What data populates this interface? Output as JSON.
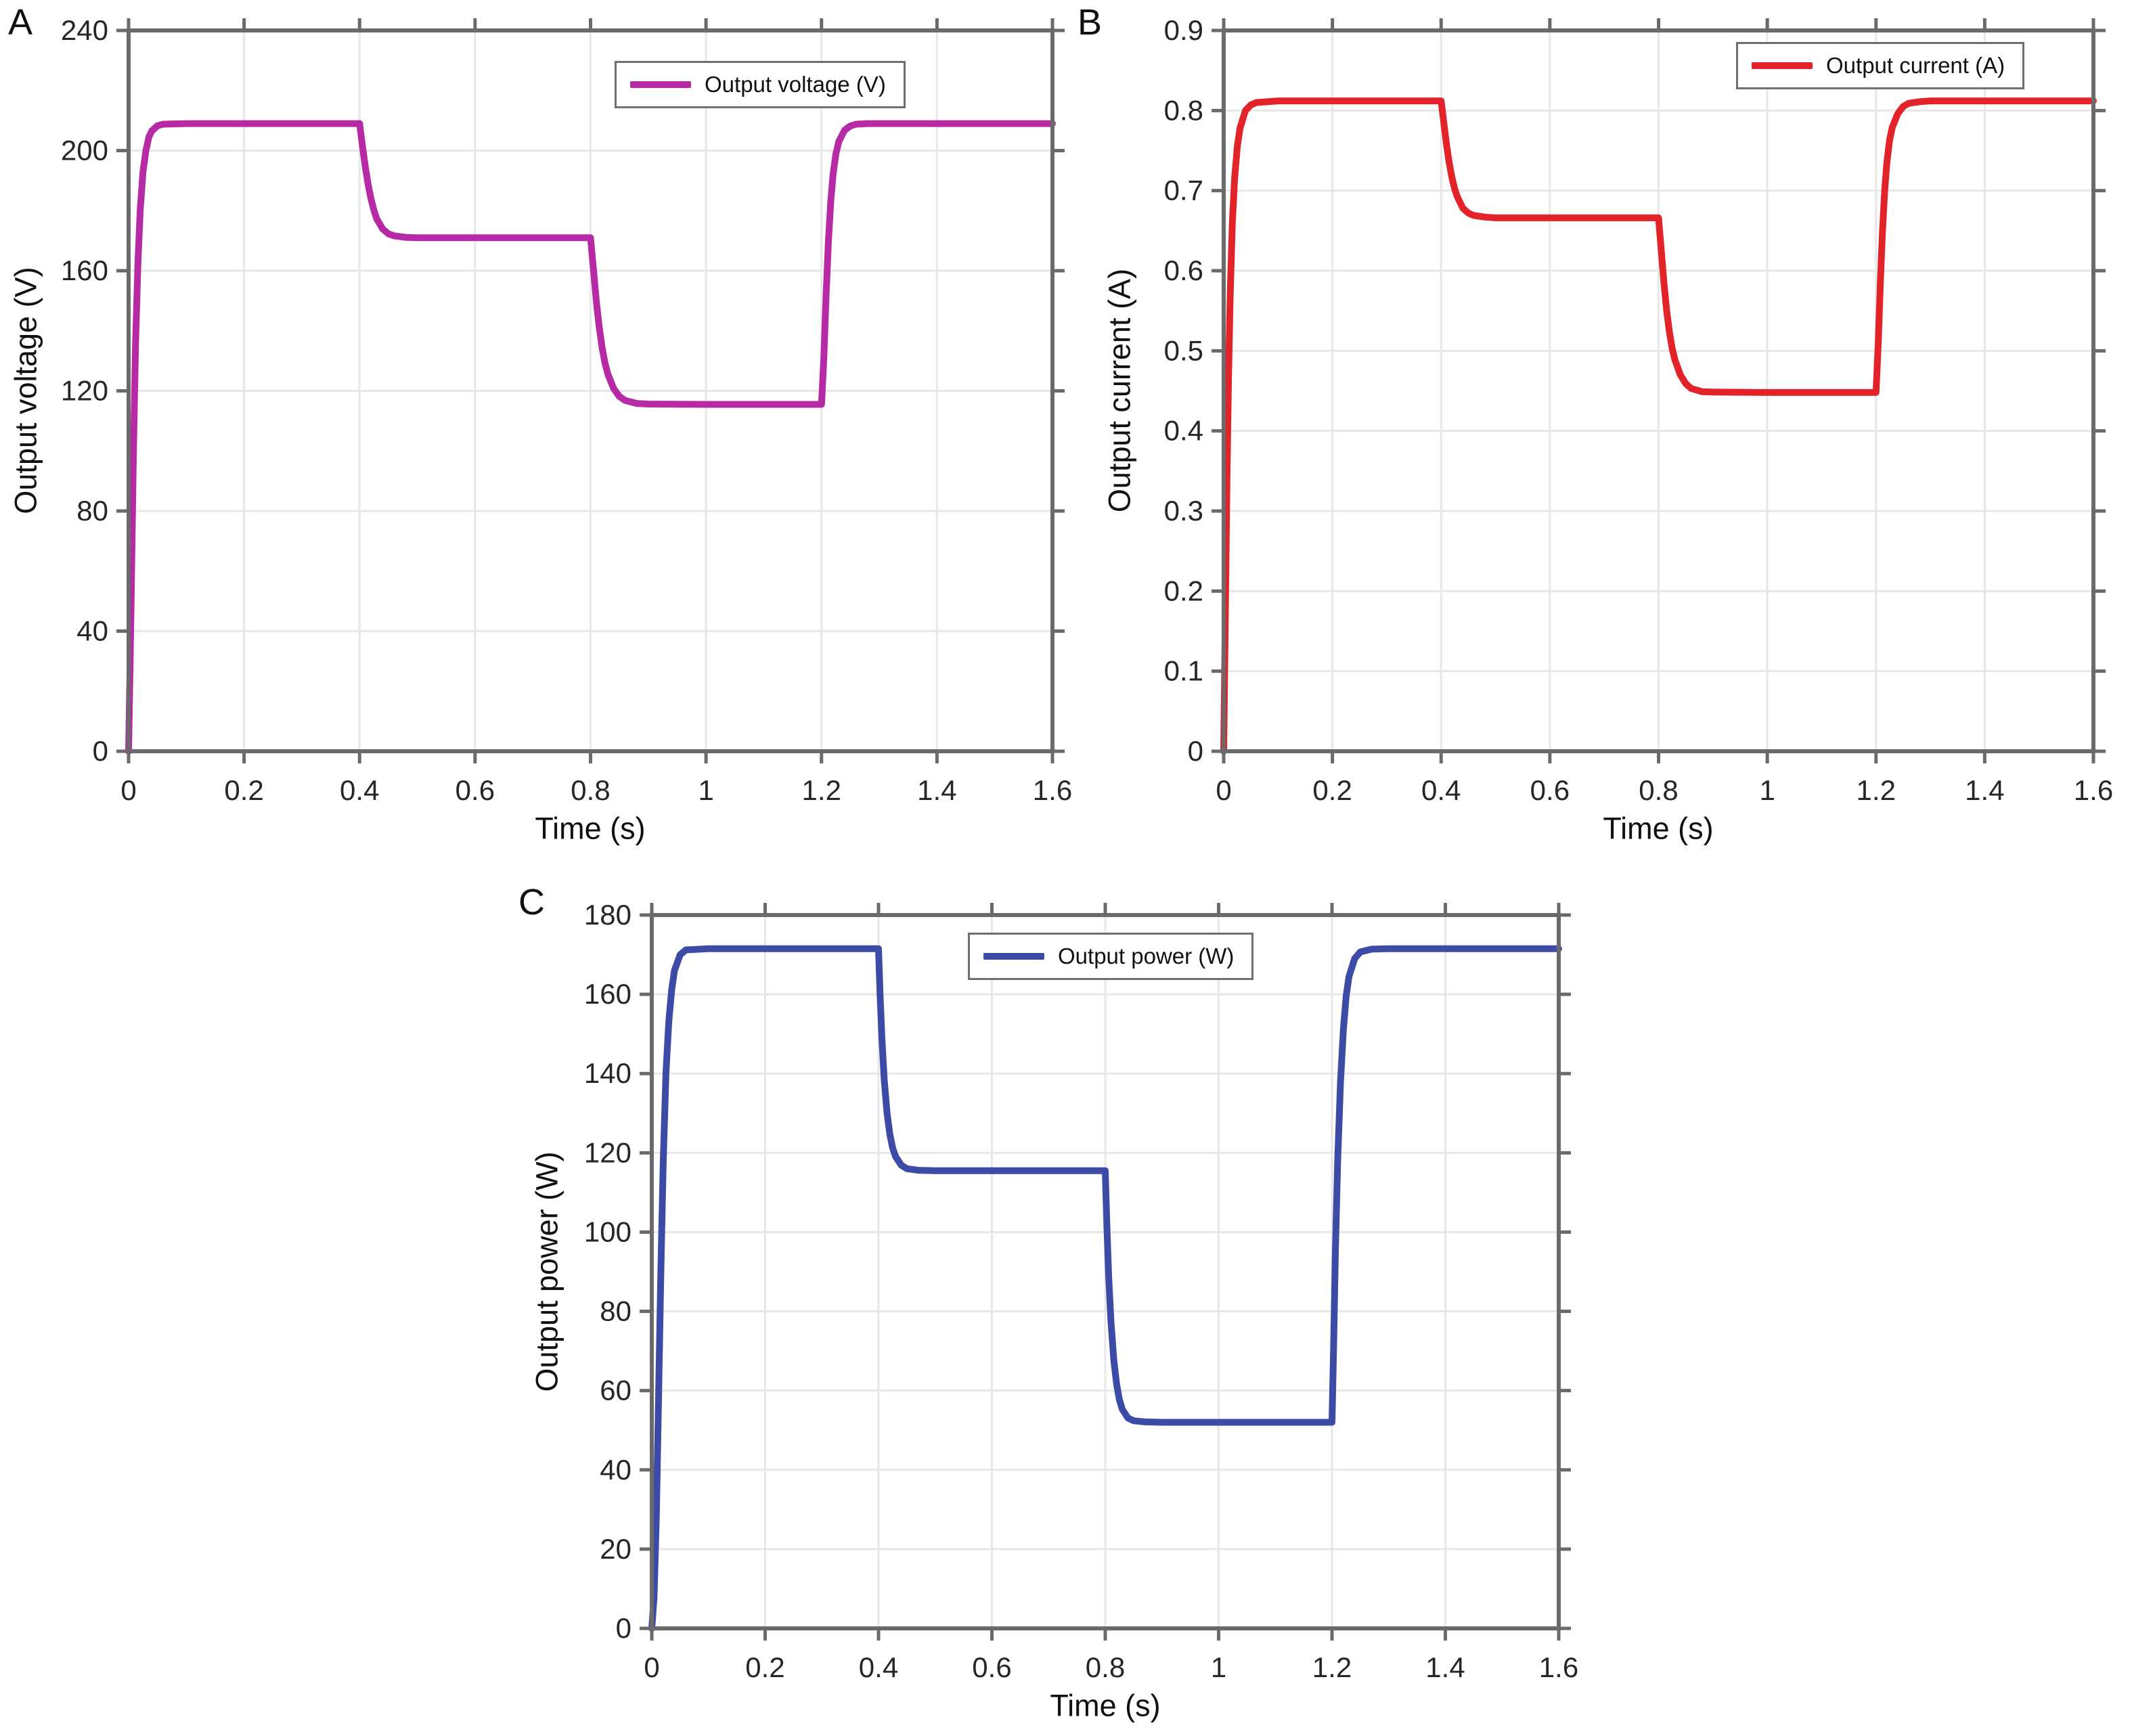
{
  "figure": {
    "description": "Three-panel simulation results figure: output voltage, output current and output power versus time",
    "background_color": "#ffffff",
    "axis_frame_color": "#6a6a6a",
    "grid_color": "#e7e7e7",
    "tick_label_color": "#262626"
  },
  "chart_data": [
    {
      "id": "voltage",
      "type": "line",
      "panel_letter": "A",
      "legend_label": "Output voltage (V)",
      "legend_position": "top-center-inside",
      "color": "#b62ba5",
      "xlabel": "Time (s)",
      "ylabel": "Output voltage (V)",
      "xlim": [
        0,
        1.6
      ],
      "ylim": [
        0,
        240
      ],
      "grid": true,
      "xticks": [
        "0",
        "0.2",
        "0.4",
        "0.6",
        "0.8",
        "1",
        "1.2",
        "1.4",
        "1.6"
      ],
      "yticks": [
        "0",
        "40",
        "80",
        "120",
        "160",
        "200",
        "240"
      ],
      "plateaus": {
        "t_0_to_0.4": 209,
        "t_0.4_to_0.8": 171,
        "t_0.8_to_1.2": 115.5,
        "t_1.2_to_1.6": 209
      },
      "step_times": [
        0.4,
        0.8,
        1.2
      ],
      "points": [
        [
          0,
          0
        ],
        [
          0.004,
          45
        ],
        [
          0.008,
          95
        ],
        [
          0.012,
          135
        ],
        [
          0.016,
          162
        ],
        [
          0.02,
          180
        ],
        [
          0.025,
          193
        ],
        [
          0.03,
          200
        ],
        [
          0.035,
          204.5
        ],
        [
          0.04,
          206.5
        ],
        [
          0.05,
          208.3
        ],
        [
          0.06,
          208.8
        ],
        [
          0.1,
          209
        ],
        [
          0.2,
          209
        ],
        [
          0.3,
          209
        ],
        [
          0.4,
          209
        ],
        [
          0.405,
          201.5
        ],
        [
          0.41,
          194.5
        ],
        [
          0.415,
          188.6
        ],
        [
          0.42,
          183.8
        ],
        [
          0.425,
          180
        ],
        [
          0.43,
          177.2
        ],
        [
          0.44,
          173.9
        ],
        [
          0.45,
          172.3
        ],
        [
          0.46,
          171.6
        ],
        [
          0.48,
          171.1
        ],
        [
          0.5,
          171
        ],
        [
          0.6,
          171
        ],
        [
          0.7,
          171
        ],
        [
          0.8,
          171
        ],
        [
          0.805,
          160.5
        ],
        [
          0.81,
          150
        ],
        [
          0.815,
          141.3
        ],
        [
          0.82,
          134.4
        ],
        [
          0.825,
          129.3
        ],
        [
          0.83,
          125.6
        ],
        [
          0.84,
          120.8
        ],
        [
          0.85,
          118.1
        ],
        [
          0.86,
          116.8
        ],
        [
          0.88,
          115.8
        ],
        [
          0.9,
          115.6
        ],
        [
          1,
          115.5
        ],
        [
          1.1,
          115.5
        ],
        [
          1.2,
          115.5
        ],
        [
          1.204,
          131
        ],
        [
          1.208,
          152
        ],
        [
          1.212,
          170
        ],
        [
          1.216,
          183
        ],
        [
          1.22,
          192
        ],
        [
          1.225,
          199
        ],
        [
          1.23,
          203
        ],
        [
          1.24,
          206.8
        ],
        [
          1.25,
          208.2
        ],
        [
          1.26,
          208.8
        ],
        [
          1.28,
          209
        ],
        [
          1.3,
          209
        ],
        [
          1.4,
          209
        ],
        [
          1.5,
          209
        ],
        [
          1.6,
          209
        ]
      ]
    },
    {
      "id": "current",
      "type": "line",
      "panel_letter": "B",
      "legend_label": "Output current (A)",
      "legend_position": "top-right-inside",
      "color": "#e2232a",
      "xlabel": "Time (s)",
      "ylabel": "Output current (A)",
      "xlim": [
        0,
        1.6
      ],
      "ylim": [
        0,
        0.9
      ],
      "grid": true,
      "xticks": [
        "0",
        "0.2",
        "0.4",
        "0.6",
        "0.8",
        "1",
        "1.2",
        "1.4",
        "1.6"
      ],
      "yticks": [
        "0",
        "0.1",
        "0.2",
        "0.3",
        "0.4",
        "0.5",
        "0.6",
        "0.7",
        "0.8",
        "0.9"
      ],
      "plateaus": {
        "t_0_to_0.4": 0.812,
        "t_0.4_to_0.8": 0.666,
        "t_0.8_to_1.2": 0.448,
        "t_1.2_to_1.6": 0.812
      },
      "step_times": [
        0.4,
        0.8,
        1.2
      ],
      "points": [
        [
          0,
          0
        ],
        [
          0.003,
          0.17
        ],
        [
          0.006,
          0.34
        ],
        [
          0.009,
          0.47
        ],
        [
          0.012,
          0.57
        ],
        [
          0.016,
          0.66
        ],
        [
          0.02,
          0.715
        ],
        [
          0.025,
          0.755
        ],
        [
          0.03,
          0.778
        ],
        [
          0.04,
          0.8
        ],
        [
          0.05,
          0.807
        ],
        [
          0.06,
          0.81
        ],
        [
          0.1,
          0.812
        ],
        [
          0.2,
          0.812
        ],
        [
          0.3,
          0.812
        ],
        [
          0.4,
          0.812
        ],
        [
          0.405,
          0.784
        ],
        [
          0.41,
          0.757
        ],
        [
          0.415,
          0.734
        ],
        [
          0.42,
          0.716
        ],
        [
          0.425,
          0.702
        ],
        [
          0.43,
          0.692
        ],
        [
          0.44,
          0.678
        ],
        [
          0.45,
          0.672
        ],
        [
          0.46,
          0.669
        ],
        [
          0.48,
          0.667
        ],
        [
          0.5,
          0.666
        ],
        [
          0.6,
          0.666
        ],
        [
          0.7,
          0.666
        ],
        [
          0.8,
          0.666
        ],
        [
          0.805,
          0.625
        ],
        [
          0.81,
          0.584
        ],
        [
          0.815,
          0.55
        ],
        [
          0.82,
          0.523
        ],
        [
          0.825,
          0.503
        ],
        [
          0.83,
          0.489
        ],
        [
          0.84,
          0.47
        ],
        [
          0.85,
          0.459
        ],
        [
          0.86,
          0.453
        ],
        [
          0.88,
          0.449
        ],
        [
          0.9,
          0.4485
        ],
        [
          1,
          0.448
        ],
        [
          1.1,
          0.448
        ],
        [
          1.2,
          0.448
        ],
        [
          1.204,
          0.508
        ],
        [
          1.208,
          0.585
        ],
        [
          1.212,
          0.65
        ],
        [
          1.216,
          0.7
        ],
        [
          1.22,
          0.735
        ],
        [
          1.225,
          0.763
        ],
        [
          1.23,
          0.779
        ],
        [
          1.24,
          0.796
        ],
        [
          1.25,
          0.805
        ],
        [
          1.26,
          0.809
        ],
        [
          1.28,
          0.811
        ],
        [
          1.3,
          0.812
        ],
        [
          1.4,
          0.812
        ],
        [
          1.5,
          0.812
        ],
        [
          1.6,
          0.812
        ]
      ]
    },
    {
      "id": "power",
      "type": "line",
      "panel_letter": "C",
      "legend_label": "Output power (W)",
      "legend_position": "top-center-inside",
      "color": "#3b4ba6",
      "xlabel": "Time (s)",
      "ylabel": "Output power (W)",
      "xlim": [
        0,
        1.6
      ],
      "ylim": [
        0,
        180
      ],
      "grid": true,
      "xticks": [
        "0",
        "0.2",
        "0.4",
        "0.6",
        "0.8",
        "1",
        "1.2",
        "1.4",
        "1.6"
      ],
      "yticks": [
        "0",
        "20",
        "40",
        "60",
        "80",
        "100",
        "120",
        "140",
        "160",
        "180"
      ],
      "plateaus": {
        "t_0_to_0.4": 171.5,
        "t_0.4_to_0.8": 115.5,
        "t_0.8_to_1.2": 52,
        "t_1.2_to_1.6": 171.5
      },
      "step_times": [
        0.4,
        0.8,
        1.2
      ],
      "points": [
        [
          0,
          0
        ],
        [
          0.004,
          8
        ],
        [
          0.008,
          28
        ],
        [
          0.012,
          58
        ],
        [
          0.016,
          90
        ],
        [
          0.02,
          117
        ],
        [
          0.025,
          140
        ],
        [
          0.03,
          153
        ],
        [
          0.035,
          161
        ],
        [
          0.04,
          166
        ],
        [
          0.05,
          170
        ],
        [
          0.06,
          171.2
        ],
        [
          0.1,
          171.5
        ],
        [
          0.2,
          171.5
        ],
        [
          0.3,
          171.5
        ],
        [
          0.4,
          171.5
        ],
        [
          0.403,
          159
        ],
        [
          0.406,
          149
        ],
        [
          0.41,
          138.5
        ],
        [
          0.415,
          130
        ],
        [
          0.42,
          124.6
        ],
        [
          0.425,
          121.2
        ],
        [
          0.43,
          119.1
        ],
        [
          0.44,
          116.9
        ],
        [
          0.45,
          116
        ],
        [
          0.47,
          115.6
        ],
        [
          0.5,
          115.5
        ],
        [
          0.6,
          115.5
        ],
        [
          0.7,
          115.5
        ],
        [
          0.8,
          115.5
        ],
        [
          0.803,
          101
        ],
        [
          0.806,
          89
        ],
        [
          0.81,
          77.5
        ],
        [
          0.815,
          67.8
        ],
        [
          0.82,
          61.6
        ],
        [
          0.825,
          57.7
        ],
        [
          0.83,
          55.3
        ],
        [
          0.84,
          53.1
        ],
        [
          0.85,
          52.4
        ],
        [
          0.87,
          52.1
        ],
        [
          0.9,
          52
        ],
        [
          1,
          52
        ],
        [
          1.1,
          52
        ],
        [
          1.2,
          52
        ],
        [
          1.203,
          72
        ],
        [
          1.206,
          95
        ],
        [
          1.21,
          118
        ],
        [
          1.215,
          138
        ],
        [
          1.22,
          151
        ],
        [
          1.225,
          159.5
        ],
        [
          1.23,
          164.5
        ],
        [
          1.24,
          169
        ],
        [
          1.25,
          170.7
        ],
        [
          1.27,
          171.4
        ],
        [
          1.3,
          171.5
        ],
        [
          1.4,
          171.5
        ],
        [
          1.5,
          171.5
        ],
        [
          1.6,
          171.5
        ]
      ]
    }
  ]
}
